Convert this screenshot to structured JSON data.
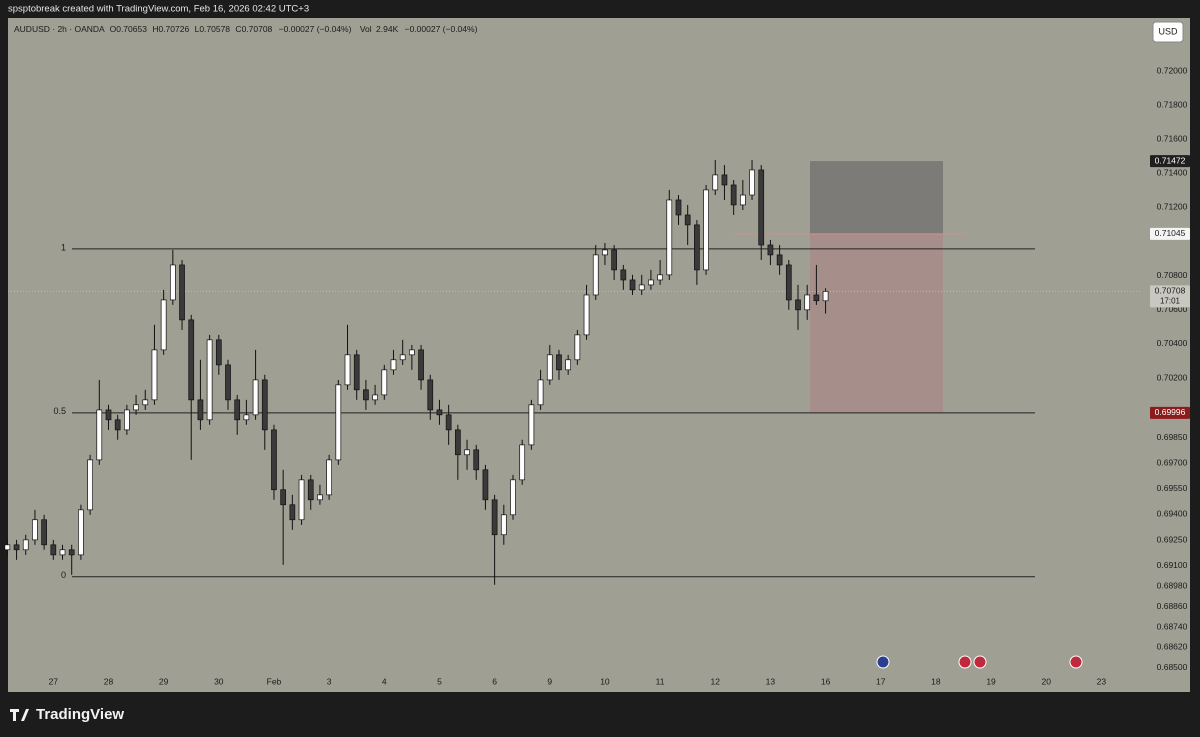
{
  "header": {
    "text": "spsptobreak created with TradingView.com, Feb 16, 2026 02:42 UTC+3"
  },
  "footer": {
    "brand": "TradingView"
  },
  "chart_data": {
    "type": "candlestick",
    "symbol": "AUDUSD · 2h · OANDA",
    "legend_labels": {
      "open": "O",
      "high": "H",
      "low": "L",
      "close": "C",
      "volume": "Vol"
    },
    "change": "−0.00027 (−0.04%)",
    "volume": "2.94K",
    "volume_change": "−0.00027 (−0.04%)",
    "currency": "USD",
    "countdown": "17:01",
    "up_color": "#ffffff",
    "down_color": "#3a3a3a",
    "wick_color": "#111111",
    "grid": false,
    "ohlc": [
      [
        0.69193,
        0.69251,
        0.69163,
        0.69222
      ],
      [
        0.69222,
        0.69251,
        0.69134,
        0.69193
      ],
      [
        0.69193,
        0.69281,
        0.69163,
        0.69251
      ],
      [
        0.69251,
        0.69427,
        0.69222,
        0.69369
      ],
      [
        0.69369,
        0.69398,
        0.69193,
        0.69222
      ],
      [
        0.69222,
        0.69251,
        0.69134,
        0.69163
      ],
      [
        0.69163,
        0.69222,
        0.69134,
        0.69193
      ],
      [
        0.69193,
        0.69222,
        0.69046,
        0.69163
      ],
      [
        0.69163,
        0.69457,
        0.69134,
        0.69427
      ],
      [
        0.69427,
        0.6975,
        0.69398,
        0.6972
      ],
      [
        0.6972,
        0.70189,
        0.69691,
        0.70013
      ],
      [
        0.70013,
        0.70043,
        0.69896,
        0.69955
      ],
      [
        0.69955,
        0.69984,
        0.69838,
        0.69896
      ],
      [
        0.69896,
        0.70043,
        0.69867,
        0.70013
      ],
      [
        0.70013,
        0.70101,
        0.69984,
        0.70043
      ],
      [
        0.70043,
        0.70131,
        0.70013,
        0.70072
      ],
      [
        0.70072,
        0.70512,
        0.70043,
        0.70365
      ],
      [
        0.70365,
        0.70717,
        0.70336,
        0.70658
      ],
      [
        0.70658,
        0.70951,
        0.70629,
        0.70863
      ],
      [
        0.70863,
        0.70892,
        0.70482,
        0.70541
      ],
      [
        0.70541,
        0.7057,
        0.6972,
        0.70072
      ],
      [
        0.70072,
        0.70307,
        0.69896,
        0.69955
      ],
      [
        0.69955,
        0.70453,
        0.69926,
        0.70424
      ],
      [
        0.70424,
        0.70453,
        0.70219,
        0.70277
      ],
      [
        0.70277,
        0.70307,
        0.70013,
        0.70072
      ],
      [
        0.70072,
        0.70101,
        0.69867,
        0.69955
      ],
      [
        0.69955,
        0.70072,
        0.69926,
        0.69984
      ],
      [
        0.69984,
        0.70365,
        0.69955,
        0.70189
      ],
      [
        0.70189,
        0.70219,
        0.69779,
        0.69896
      ],
      [
        0.69896,
        0.69926,
        0.69486,
        0.69545
      ],
      [
        0.69545,
        0.69662,
        0.69105,
        0.69457
      ],
      [
        0.69457,
        0.69515,
        0.6931,
        0.69369
      ],
      [
        0.69369,
        0.69632,
        0.69339,
        0.69603
      ],
      [
        0.69603,
        0.69632,
        0.69427,
        0.69486
      ],
      [
        0.69486,
        0.69574,
        0.69457,
        0.69515
      ],
      [
        0.69515,
        0.6975,
        0.69486,
        0.6972
      ],
      [
        0.6972,
        0.70189,
        0.69691,
        0.7016
      ],
      [
        0.7016,
        0.70512,
        0.70131,
        0.70336
      ],
      [
        0.70336,
        0.70365,
        0.70072,
        0.70131
      ],
      [
        0.70131,
        0.70189,
        0.70013,
        0.70072
      ],
      [
        0.70072,
        0.7016,
        0.70043,
        0.70101
      ],
      [
        0.70101,
        0.70277,
        0.70072,
        0.70248
      ],
      [
        0.70248,
        0.70365,
        0.70219,
        0.70307
      ],
      [
        0.70307,
        0.70424,
        0.70277,
        0.70336
      ],
      [
        0.70336,
        0.70394,
        0.70248,
        0.70365
      ],
      [
        0.70365,
        0.70394,
        0.70131,
        0.70189
      ],
      [
        0.70189,
        0.70219,
        0.69955,
        0.70013
      ],
      [
        0.70013,
        0.70072,
        0.69926,
        0.69984
      ],
      [
        0.69984,
        0.70043,
        0.69808,
        0.69896
      ],
      [
        0.69896,
        0.69926,
        0.69603,
        0.6975
      ],
      [
        0.6975,
        0.69838,
        0.69662,
        0.69779
      ],
      [
        0.69779,
        0.69808,
        0.69603,
        0.69662
      ],
      [
        0.69662,
        0.69691,
        0.69427,
        0.69486
      ],
      [
        0.69486,
        0.69515,
        0.68988,
        0.69281
      ],
      [
        0.69281,
        0.69457,
        0.69222,
        0.69398
      ],
      [
        0.69398,
        0.69632,
        0.69369,
        0.69603
      ],
      [
        0.69603,
        0.69838,
        0.69574,
        0.69808
      ],
      [
        0.69808,
        0.70072,
        0.69779,
        0.70043
      ],
      [
        0.70043,
        0.70248,
        0.70013,
        0.70189
      ],
      [
        0.70189,
        0.70394,
        0.7016,
        0.70336
      ],
      [
        0.70336,
        0.70365,
        0.70189,
        0.70248
      ],
      [
        0.70248,
        0.70336,
        0.70219,
        0.70307
      ],
      [
        0.70307,
        0.70482,
        0.70277,
        0.70453
      ],
      [
        0.70453,
        0.70746,
        0.70424,
        0.70687
      ],
      [
        0.70687,
        0.7098,
        0.70658,
        0.70922
      ],
      [
        0.70922,
        0.70992,
        0.70863,
        0.70951
      ],
      [
        0.70951,
        0.7098,
        0.70775,
        0.70834
      ],
      [
        0.70834,
        0.70863,
        0.70717,
        0.70775
      ],
      [
        0.70775,
        0.70805,
        0.70687,
        0.70717
      ],
      [
        0.70717,
        0.70805,
        0.70687,
        0.70746
      ],
      [
        0.70746,
        0.70834,
        0.70717,
        0.70775
      ],
      [
        0.70775,
        0.70892,
        0.70746,
        0.70805
      ],
      [
        0.70805,
        0.71303,
        0.70775,
        0.71244
      ],
      [
        0.71244,
        0.71273,
        0.71098,
        0.71156
      ],
      [
        0.71156,
        0.71215,
        0.7098,
        0.71098
      ],
      [
        0.71098,
        0.71127,
        0.70746,
        0.70834
      ],
      [
        0.70834,
        0.71332,
        0.70805,
        0.71303
      ],
      [
        0.71303,
        0.71478,
        0.71273,
        0.71391
      ],
      [
        0.71391,
        0.71449,
        0.71244,
        0.71332
      ],
      [
        0.71332,
        0.71361,
        0.71156,
        0.71215
      ],
      [
        0.71215,
        0.71361,
        0.71185,
        0.71273
      ],
      [
        0.71273,
        0.71478,
        0.71244,
        0.7142
      ],
      [
        0.7142,
        0.71449,
        0.70892,
        0.7098
      ],
      [
        0.7098,
        0.7101,
        0.70863,
        0.70922
      ],
      [
        0.70922,
        0.7098,
        0.70805,
        0.70863
      ],
      [
        0.70863,
        0.70892,
        0.706,
        0.70658
      ],
      [
        0.70658,
        0.70746,
        0.70482,
        0.706
      ],
      [
        0.706,
        0.70746,
        0.70541,
        0.70687
      ],
      [
        0.70687,
        0.70863,
        0.70629,
        0.70653
      ],
      [
        0.70653,
        0.70726,
        0.70578,
        0.70708
      ]
    ],
    "xlim": [
      -0.8,
      123.2
    ],
    "xticks": [
      {
        "value": 5,
        "label": "27"
      },
      {
        "value": 11,
        "label": "28"
      },
      {
        "value": 17,
        "label": "29"
      },
      {
        "value": 23,
        "label": "30"
      },
      {
        "value": 29,
        "label": "Feb"
      },
      {
        "value": 35,
        "label": "3"
      },
      {
        "value": 41,
        "label": "4"
      },
      {
        "value": 47,
        "label": "5"
      },
      {
        "value": 53,
        "label": "6"
      },
      {
        "value": 59,
        "label": "9"
      },
      {
        "value": 65,
        "label": "10"
      },
      {
        "value": 71,
        "label": "11"
      },
      {
        "value": 77,
        "label": "12"
      },
      {
        "value": 83,
        "label": "13"
      },
      {
        "value": 89,
        "label": "16"
      },
      {
        "value": 95,
        "label": "17"
      },
      {
        "value": 101,
        "label": "18"
      },
      {
        "value": 107,
        "label": "19"
      },
      {
        "value": 113,
        "label": "20"
      },
      {
        "value": 119,
        "label": "23"
      }
    ],
    "ylim": [
      0.68359,
      0.72311
    ],
    "yticks": [
      {
        "value": 0.72,
        "label": "0.72000"
      },
      {
        "value": 0.718,
        "label": "0.71800"
      },
      {
        "value": 0.716,
        "label": "0.71600"
      },
      {
        "value": 0.714,
        "label": "0.71400"
      },
      {
        "value": 0.712,
        "label": "0.71200"
      },
      {
        "value": 0.708,
        "label": "0.70800"
      },
      {
        "value": 0.706,
        "label": "0.70600"
      },
      {
        "value": 0.704,
        "label": "0.70400"
      },
      {
        "value": 0.702,
        "label": "0.70200"
      },
      {
        "value": 0.6985,
        "label": "0.69850"
      },
      {
        "value": 0.697,
        "label": "0.69700"
      },
      {
        "value": 0.6955,
        "label": "0.69550"
      },
      {
        "value": 0.694,
        "label": "0.69400"
      },
      {
        "value": 0.6925,
        "label": "0.69250"
      },
      {
        "value": 0.691,
        "label": "0.69100"
      },
      {
        "value": 0.6898,
        "label": "0.68980"
      },
      {
        "value": 0.6886,
        "label": "0.68860"
      },
      {
        "value": 0.6874,
        "label": "0.68740"
      },
      {
        "value": 0.6862,
        "label": "0.68620"
      },
      {
        "value": 0.685,
        "label": "0.68500"
      }
    ],
    "fib_levels": [
      {
        "level": 1,
        "price": 0.70957
      },
      {
        "level": 0.5,
        "price": 0.69996
      },
      {
        "level": 0,
        "price": 0.69035
      }
    ],
    "position": {
      "target": 0.71472,
      "entry": 0.71045,
      "stop": 0.69996,
      "profit_color": "#7c7b77",
      "loss_color": "#a68f8a"
    }
  }
}
